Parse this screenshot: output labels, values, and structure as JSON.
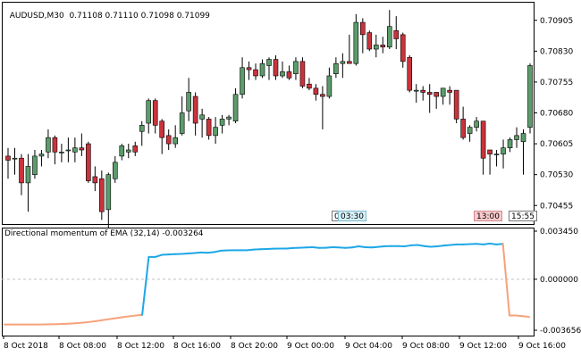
{
  "header": {
    "symbol": "AUDUSD,M30",
    "ohlc": "0.71108 0.71110 0.71098 0.71099"
  },
  "indicator": {
    "label": "Directional momentum of EMA (32,14) -0.003264"
  },
  "tags": {
    "time_marker": "03:30",
    "time_left_glyph": "0",
    "mark_1300": "13:00",
    "mark_1555": "15:55"
  },
  "colors": {
    "bull": "#5b9c6b",
    "bear": "#c8343c",
    "wick": "#000000",
    "momentum_pos": "#1ea7e6",
    "momentum_neg": "#f6a27a",
    "grid": "#c0c0c0"
  },
  "chart_data": [
    {
      "type": "candlestick",
      "title": "AUDUSD,M30",
      "ylim": [
        0.7041,
        0.7095
      ],
      "y_ticks": [
        "0.70905",
        "0.70830",
        "0.70755",
        "0.70680",
        "0.70605",
        "0.70530",
        "0.70455"
      ],
      "x_ticks": [
        "8 Oct 2018",
        "8 Oct 08:00",
        "8 Oct 12:00",
        "8 Oct 16:00",
        "8 Oct 20:00",
        "9 Oct 00:00",
        "9 Oct 04:00",
        "9 Oct 08:00",
        "9 Oct 12:00",
        "9 Oct 16:00"
      ],
      "candles": [
        [
          0.70575,
          0.70565,
          0.70595,
          0.7052
        ],
        [
          0.7057,
          0.7057,
          0.70595,
          0.7053
        ],
        [
          0.7057,
          0.7051,
          0.7058,
          0.7048
        ],
        [
          0.7051,
          0.7055,
          0.7058,
          0.7044
        ],
        [
          0.7053,
          0.70575,
          0.7059,
          0.7052
        ],
        [
          0.70575,
          0.7058,
          0.7059,
          0.7055
        ],
        [
          0.70585,
          0.7062,
          0.7064,
          0.7057
        ],
        [
          0.7062,
          0.70585,
          0.70625,
          0.70555
        ],
        [
          0.70585,
          0.70585,
          0.70605,
          0.7056
        ],
        [
          0.7059,
          0.7059,
          0.7062,
          0.7056
        ],
        [
          0.70585,
          0.70595,
          0.7062,
          0.7056
        ],
        [
          0.70595,
          0.7059,
          0.7063,
          0.70575
        ],
        [
          0.70605,
          0.70515,
          0.7061,
          0.7051
        ],
        [
          0.70525,
          0.7051,
          0.7055,
          0.7049
        ],
        [
          0.7052,
          0.7044,
          0.7054,
          0.7042
        ],
        [
          0.70445,
          0.7053,
          0.70535,
          0.704
        ],
        [
          0.7052,
          0.7056,
          0.70575,
          0.7051
        ],
        [
          0.70575,
          0.706,
          0.70605,
          0.70565
        ],
        [
          0.70585,
          0.7059,
          0.70605,
          0.7057
        ],
        [
          0.706,
          0.70585,
          0.7061,
          0.70575
        ],
        [
          0.70635,
          0.7065,
          0.7066,
          0.706
        ],
        [
          0.70655,
          0.7071,
          0.70715,
          0.7063
        ],
        [
          0.7071,
          0.7065,
          0.70715,
          0.7063
        ],
        [
          0.7066,
          0.7062,
          0.70665,
          0.7058
        ],
        [
          0.70625,
          0.70605,
          0.7064,
          0.7059
        ],
        [
          0.70605,
          0.7062,
          0.7065,
          0.70595
        ],
        [
          0.7063,
          0.7068,
          0.7072,
          0.70625
        ],
        [
          0.70685,
          0.7073,
          0.70765,
          0.7066
        ],
        [
          0.7072,
          0.70655,
          0.7073,
          0.70625
        ],
        [
          0.70665,
          0.70675,
          0.7069,
          0.7062
        ],
        [
          0.70665,
          0.70625,
          0.7067,
          0.70615
        ],
        [
          0.70625,
          0.70645,
          0.7067,
          0.70605
        ],
        [
          0.7065,
          0.70665,
          0.70675,
          0.7063
        ],
        [
          0.70665,
          0.7067,
          0.70675,
          0.7065
        ],
        [
          0.7066,
          0.70725,
          0.7074,
          0.70655
        ],
        [
          0.70725,
          0.7079,
          0.70815,
          0.70715
        ],
        [
          0.7079,
          0.70785,
          0.70805,
          0.7076
        ],
        [
          0.70785,
          0.7077,
          0.708,
          0.7076
        ],
        [
          0.7077,
          0.708,
          0.7081,
          0.70765
        ],
        [
          0.70795,
          0.7081,
          0.70815,
          0.7076
        ],
        [
          0.7081,
          0.7077,
          0.7082,
          0.7076
        ],
        [
          0.7077,
          0.7078,
          0.70805,
          0.70765
        ],
        [
          0.7078,
          0.70765,
          0.70795,
          0.7076
        ],
        [
          0.70775,
          0.70805,
          0.70815,
          0.7076
        ],
        [
          0.70805,
          0.70745,
          0.70815,
          0.7074
        ],
        [
          0.7075,
          0.7074,
          0.70765,
          0.70735
        ],
        [
          0.7074,
          0.70725,
          0.7075,
          0.7071
        ],
        [
          0.70725,
          0.7072,
          0.70745,
          0.7064
        ],
        [
          0.7072,
          0.7077,
          0.7079,
          0.70715
        ],
        [
          0.70775,
          0.708,
          0.70815,
          0.70765
        ],
        [
          0.708,
          0.70805,
          0.70825,
          0.70765
        ],
        [
          0.70805,
          0.708,
          0.7087,
          0.708
        ],
        [
          0.708,
          0.709,
          0.7092,
          0.70795
        ],
        [
          0.709,
          0.7087,
          0.7091,
          0.70825
        ],
        [
          0.70875,
          0.70835,
          0.7088,
          0.7083
        ],
        [
          0.70835,
          0.70845,
          0.7087,
          0.70815
        ],
        [
          0.70845,
          0.7084,
          0.70865,
          0.70825
        ],
        [
          0.7084,
          0.7089,
          0.7093,
          0.70835
        ],
        [
          0.7088,
          0.7086,
          0.70915,
          0.70835
        ],
        [
          0.7087,
          0.70805,
          0.70875,
          0.7079
        ],
        [
          0.70815,
          0.70735,
          0.7082,
          0.7073
        ],
        [
          0.70735,
          0.70735,
          0.7075,
          0.70705
        ],
        [
          0.70735,
          0.7073,
          0.70745,
          0.7071
        ],
        [
          0.7073,
          0.70725,
          0.7075,
          0.7068
        ],
        [
          0.7073,
          0.7072,
          0.7073,
          0.7069
        ],
        [
          0.7072,
          0.7074,
          0.7074,
          0.707
        ],
        [
          0.70735,
          0.7073,
          0.70745,
          0.707
        ],
        [
          0.70735,
          0.70665,
          0.70735,
          0.70655
        ],
        [
          0.70665,
          0.7062,
          0.70695,
          0.70615
        ],
        [
          0.7063,
          0.70645,
          0.7065,
          0.7061
        ],
        [
          0.70645,
          0.7066,
          0.7067,
          0.70635
        ],
        [
          0.7066,
          0.7057,
          0.7066,
          0.7053
        ],
        [
          0.7059,
          0.7058,
          0.7059,
          0.7053
        ],
        [
          0.7058,
          0.7058,
          0.7059,
          0.7055
        ],
        [
          0.7058,
          0.70595,
          0.70615,
          0.70545
        ],
        [
          0.70595,
          0.70615,
          0.7062,
          0.70585
        ],
        [
          0.70615,
          0.70625,
          0.70645,
          0.70595
        ],
        [
          0.7061,
          0.7063,
          0.7064,
          0.7053
        ],
        [
          0.70645,
          0.70795,
          0.708,
          0.7063
        ]
      ]
    },
    {
      "type": "line",
      "title": "Directional momentum of EMA (32,14) -0.003264",
      "ylim": [
        -0.003656,
        0.00345
      ],
      "y_ticks": [
        "0.003450",
        "0.000000",
        "-0.003656"
      ],
      "series": [
        {
          "values": [
            -0.00325,
            -0.00325,
            -0.00325,
            -0.00325,
            -0.00325,
            -0.00325,
            -0.00324,
            -0.00323,
            -0.00322,
            -0.0032,
            -0.00318,
            -0.00315,
            -0.00311,
            -0.00306,
            -0.003,
            -0.00293,
            -0.00286,
            -0.00279,
            -0.00272,
            -0.00266,
            -0.0026,
            -0.00255,
            0.0016,
            0.0016,
            0.00175,
            0.00178,
            0.0018,
            0.00182,
            0.00185,
            0.00188,
            0.00192,
            0.0019,
            0.00195,
            0.00205,
            0.00207,
            0.00208,
            0.00208,
            0.00208,
            0.00213,
            0.00215,
            0.00217,
            0.00219,
            0.0022,
            0.0022,
            0.00224,
            0.00226,
            0.00228,
            0.0023,
            0.00225,
            0.00226,
            0.0023,
            0.00228,
            0.00225,
            0.00228,
            0.00236,
            0.0023,
            0.00228,
            0.00232,
            0.00237,
            0.00238,
            0.00238,
            0.00236,
            0.00243,
            0.00246,
            0.00238,
            0.00233,
            0.00236,
            0.00242,
            0.00246,
            0.0025,
            0.0025,
            0.00252,
            0.00254,
            0.0025,
            0.00256,
            0.0025,
            0.00254,
            -0.0026,
            -0.0026,
            -0.00265,
            -0.0027
          ]
        }
      ]
    }
  ]
}
